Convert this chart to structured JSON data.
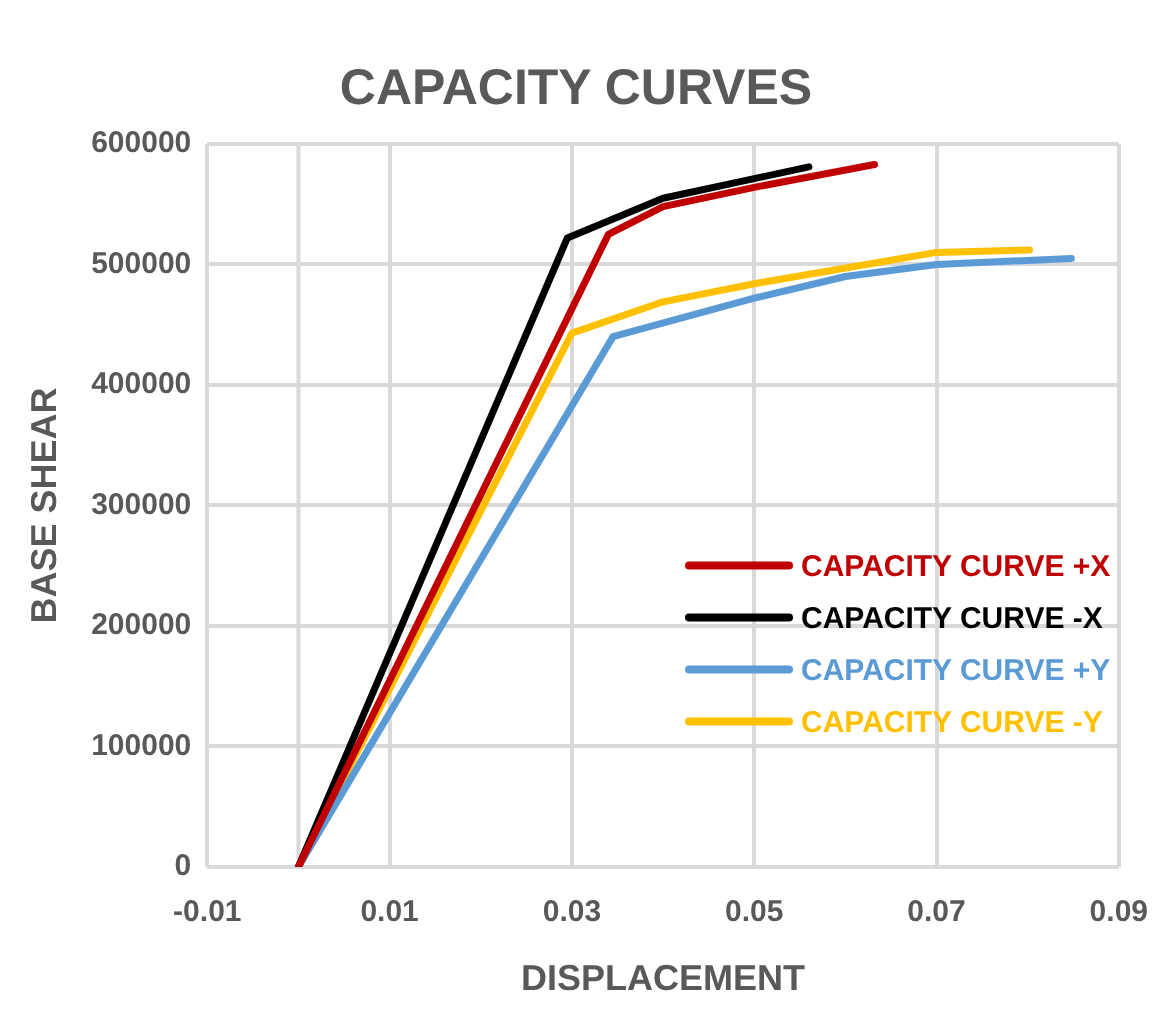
{
  "chart_data": {
    "type": "line",
    "title": "CAPACITY CURVES",
    "xlabel": "DISPLACEMENT",
    "ylabel": "BASE SHEAR",
    "xlim": [
      -0.01,
      0.09
    ],
    "xticks": [
      -0.01,
      0.01,
      0.03,
      0.05,
      0.07,
      0.09
    ],
    "ylim": [
      0,
      600000
    ],
    "yticks": [
      0,
      100000,
      200000,
      300000,
      400000,
      500000,
      600000
    ],
    "grid": true,
    "legend": "right",
    "marker": "none",
    "line_style": "solid",
    "ref_lines": [
      {
        "axis": "x",
        "value": 0,
        "color": "#d9d9d9"
      }
    ],
    "series": [
      {
        "name": "CAPACITY CURVE +X",
        "color": "#c00000",
        "x": [
          0,
          0.034,
          0.04,
          0.05,
          0.0632
        ],
        "values": [
          0,
          525000,
          548000,
          564000,
          583000
        ]
      },
      {
        "name": "CAPACITY CURVE -X",
        "color": "#000000",
        "x": [
          0,
          0.0295,
          0.04,
          0.056
        ],
        "values": [
          0,
          522000,
          555000,
          581000
        ]
      },
      {
        "name": "CAPACITY CURVE +Y",
        "color": "#5b9bd5",
        "x": [
          0,
          0.0345,
          0.05,
          0.06,
          0.07,
          0.0848
        ],
        "values": [
          0,
          440000,
          472000,
          490000,
          500000,
          505000
        ]
      },
      {
        "name": "CAPACITY CURVE -Y",
        "color": "#ffc000",
        "x": [
          0,
          0.03,
          0.04,
          0.05,
          0.07,
          0.0802
        ],
        "values": [
          0,
          443000,
          469000,
          484000,
          510000,
          512000
        ]
      }
    ]
  }
}
